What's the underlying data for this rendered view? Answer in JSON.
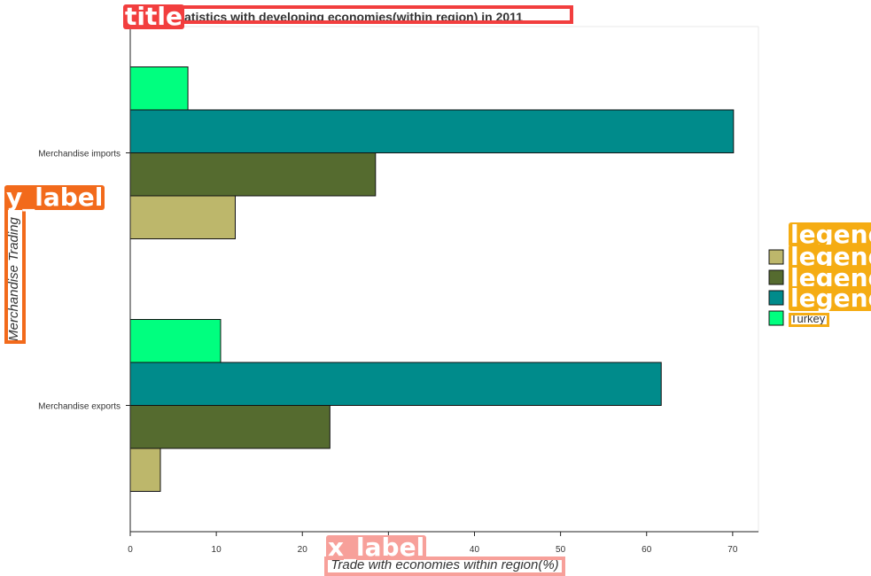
{
  "chart_data": {
    "type": "bar",
    "orientation": "horizontal",
    "title": "Statistics with developing economies(within region) in 2011",
    "xlabel": "Trade with economies within region(%)",
    "ylabel": "Merchandise Trading",
    "categories": [
      "Merchandise exports",
      "Merchandise imports"
    ],
    "xlim": [
      0,
      73
    ],
    "xticks": [
      0,
      10,
      20,
      30,
      40,
      50,
      60,
      70
    ],
    "grid": false,
    "legend_position": "right",
    "series": [
      {
        "name": "",
        "color": "#bdb76b",
        "values": [
          3.5,
          12.2
        ]
      },
      {
        "name": "",
        "color": "#556b2f",
        "values": [
          23.2,
          28.5
        ]
      },
      {
        "name": "",
        "color": "#008b8b",
        "values": [
          61.7,
          70.1
        ]
      },
      {
        "name": "Turkey",
        "color": "#00ff7f",
        "values": [
          10.5,
          6.7
        ]
      }
    ]
  },
  "annotations": {
    "title_tag": "title",
    "y_label_tag": "y_label",
    "x_label_tag": "x_label",
    "legend_tag": "legend"
  },
  "colors": {
    "title_ann": "#f23e3e",
    "ylabel_ann": "#f26a1b",
    "xlabel_ann": "#f7a09a",
    "legend_ann": "#f5ac13"
  }
}
